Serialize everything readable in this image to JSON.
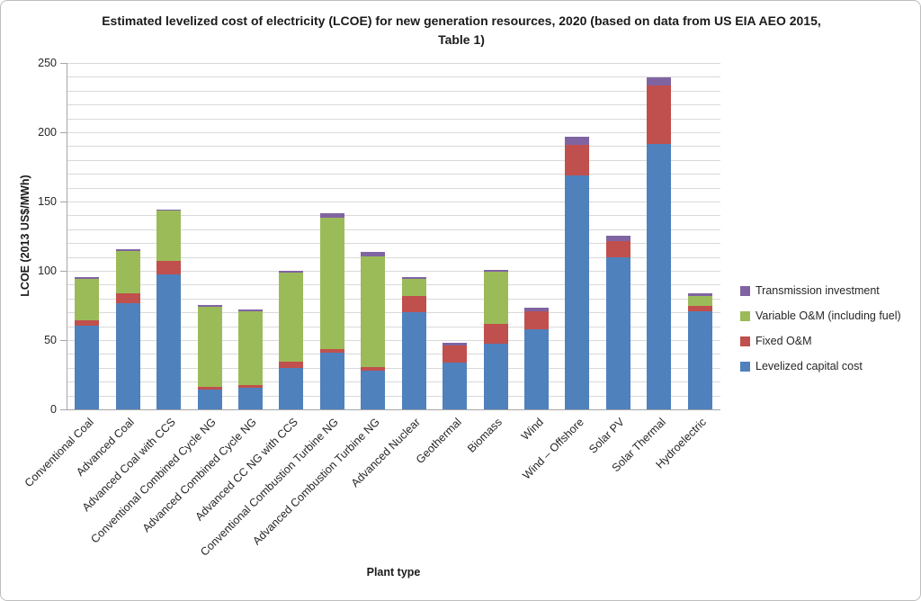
{
  "chart_data": {
    "type": "bar",
    "stacked": true,
    "title": "Estimated levelized cost of electricity (LCOE) for new generation resources, 2020 (based on data from US EIA AEO 2015, Table 1)",
    "xlabel": "Plant type",
    "ylabel": "LCOE (2013 US$/MWh)",
    "ylim": [
      0,
      250
    ],
    "yticks": [
      0,
      50,
      100,
      150,
      200,
      250
    ],
    "minor_grid_step": 10,
    "grid": true,
    "legend_position": "right",
    "categories": [
      "Conventional Coal",
      "Advanced Coal",
      "Advanced Coal with CCS",
      "Conventional Combined Cycle NG",
      "Advanced Combined Cycle NG",
      "Advanced CC NG with CCS",
      "Conventional Combustion Turbine NG",
      "Advanced Combustion Turbine NG",
      "Advanced Nuclear",
      "Geothermal",
      "Biomass",
      "Wind",
      "Wind – Offshore",
      "Solar PV",
      "Solar Thermal",
      "Hydroelectric"
    ],
    "series": [
      {
        "name": "Levelized capital cost",
        "color": "#4f81bd",
        "values": [
          60.4,
          76.9,
          97.3,
          14.4,
          15.9,
          30.1,
          40.7,
          27.8,
          70.1,
          34.1,
          47.1,
          57.7,
          168.6,
          109.8,
          191.6,
          70.7
        ]
      },
      {
        "name": "Fixed O&M",
        "color": "#c0504d",
        "values": [
          4.2,
          6.9,
          9.8,
          1.7,
          1.6,
          4.2,
          2.8,
          2.7,
          11.8,
          12.3,
          14.5,
          12.8,
          22.5,
          11.4,
          42.1,
          3.9
        ]
      },
      {
        "name": "Variable O&M (including fuel)",
        "color": "#9bbb59",
        "values": [
          29.4,
          30.7,
          36.1,
          57.8,
          53.6,
          64.7,
          94.6,
          79.6,
          12.2,
          0,
          37.6,
          0,
          0,
          0,
          0,
          7.0
        ]
      },
      {
        "name": "Transmission investment",
        "color": "#8064a2",
        "values": [
          1.2,
          1.2,
          1.2,
          1.2,
          1.2,
          1.2,
          3.5,
          3.5,
          1.1,
          1.4,
          1.2,
          3.1,
          5.8,
          4.1,
          6.0,
          2.0
        ]
      }
    ]
  },
  "legend": {
    "entries": [
      {
        "label": "Transmission investment",
        "color": "#8064a2"
      },
      {
        "label": "Variable O&M (including fuel)",
        "color": "#9bbb59"
      },
      {
        "label": "Fixed O&M",
        "color": "#c0504d"
      },
      {
        "label": "Levelized capital cost",
        "color": "#4f81bd"
      }
    ]
  }
}
